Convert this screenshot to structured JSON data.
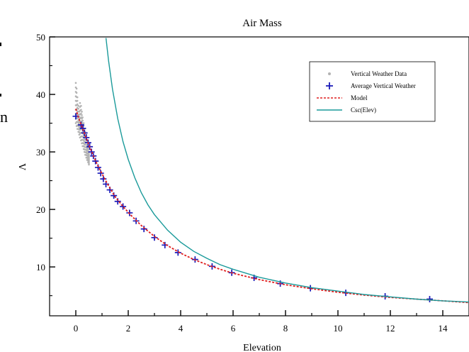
{
  "page_fragments": {
    "left_text": "n"
  },
  "chart_data": {
    "type": "line",
    "title": "Air Mass",
    "xlabel": "Elevation",
    "ylabel": "Λ",
    "xlim": [
      -1,
      15
    ],
    "ylim": [
      1.5,
      50
    ],
    "x_ticks": [
      0,
      2,
      4,
      6,
      8,
      10,
      12,
      14
    ],
    "y_ticks": [
      10,
      20,
      30,
      40,
      50
    ],
    "grid": false,
    "legend_position": "top-right",
    "colors": {
      "vertical_weather_data": "#b3b3b3",
      "average_vertical_weather": "#1a1ab8",
      "model": "#e02020",
      "csc_elev": "#1a9a9a"
    },
    "series": [
      {
        "name": "Vertical Weather Data",
        "style": "dots",
        "x": [
          0.0,
          0.03,
          0.06,
          0.1,
          0.13,
          0.16,
          0.2,
          0.23,
          0.26,
          0.3,
          0.33,
          0.36,
          0.4,
          0.43,
          0.47,
          0.5
        ],
        "y_min": [
          35.0,
          34.5,
          34.0,
          33.5,
          33.0,
          32.5,
          32.0,
          31.5,
          31.0,
          30.5,
          30.0,
          29.5,
          29.0,
          28.6,
          28.2,
          27.8
        ],
        "y_max": [
          42.0,
          41.0,
          39.5,
          38.0,
          37.0,
          38.5,
          38.0,
          37.0,
          36.0,
          35.0,
          34.0,
          33.5,
          33.0,
          32.0,
          31.0,
          30.0
        ]
      },
      {
        "name": "Average Vertical Weather",
        "style": "plus",
        "x": [
          0.0,
          0.2,
          0.27,
          0.33,
          0.4,
          0.47,
          0.53,
          0.6,
          0.67,
          0.75,
          0.85,
          0.95,
          1.05,
          1.15,
          1.3,
          1.45,
          1.6,
          1.8,
          2.05,
          2.3,
          2.6,
          3.0,
          3.4,
          3.9,
          4.55,
          5.2,
          5.95,
          6.8,
          7.8,
          8.95,
          10.3,
          11.8,
          13.5
        ],
        "y": [
          36.2,
          34.7,
          34.1,
          33.3,
          32.5,
          31.6,
          30.9,
          30.0,
          29.3,
          28.4,
          27.3,
          26.3,
          25.3,
          24.4,
          23.4,
          22.4,
          21.4,
          20.5,
          19.4,
          18.0,
          16.6,
          15.1,
          13.8,
          12.5,
          11.3,
          10.1,
          9.0,
          8.1,
          7.1,
          6.3,
          5.5,
          4.9,
          4.4
        ]
      },
      {
        "name": "Model",
        "style": "dashed-line",
        "x": [
          0.0,
          0.1,
          0.2,
          0.3,
          0.4,
          0.5,
          0.6,
          0.8,
          1.0,
          1.2,
          1.5,
          1.8,
          2.1,
          2.5,
          3.0,
          3.5,
          4.0,
          4.5,
          5.0,
          5.5,
          6.0,
          7.0,
          8.0,
          9.0,
          10.0,
          11.0,
          12.0,
          13.0,
          14.0,
          15.0
        ],
        "y": [
          37.5,
          36.0,
          34.8,
          33.6,
          32.4,
          31.2,
          30.1,
          28.0,
          26.2,
          24.5,
          22.2,
          20.5,
          19.0,
          17.2,
          15.3,
          13.7,
          12.4,
          11.3,
          10.4,
          9.6,
          8.9,
          7.8,
          6.9,
          6.2,
          5.6,
          5.1,
          4.7,
          4.4,
          4.1,
          3.8
        ]
      },
      {
        "name": "Csc(Elev)",
        "style": "line",
        "x": [
          1.15,
          1.25,
          1.4,
          1.6,
          1.8,
          2.0,
          2.25,
          2.5,
          2.75,
          3.0,
          3.5,
          4.0,
          4.5,
          5.0,
          5.5,
          6.0,
          7.0,
          8.0,
          9.0,
          10.0,
          11.0,
          12.0,
          13.0,
          14.0,
          15.0
        ],
        "y": [
          49.8,
          45.8,
          40.9,
          35.8,
          31.8,
          28.7,
          25.5,
          22.9,
          20.8,
          19.1,
          16.4,
          14.3,
          12.7,
          11.5,
          10.4,
          9.6,
          8.2,
          7.2,
          6.4,
          5.8,
          5.2,
          4.8,
          4.4,
          4.1,
          3.9
        ]
      }
    ]
  }
}
